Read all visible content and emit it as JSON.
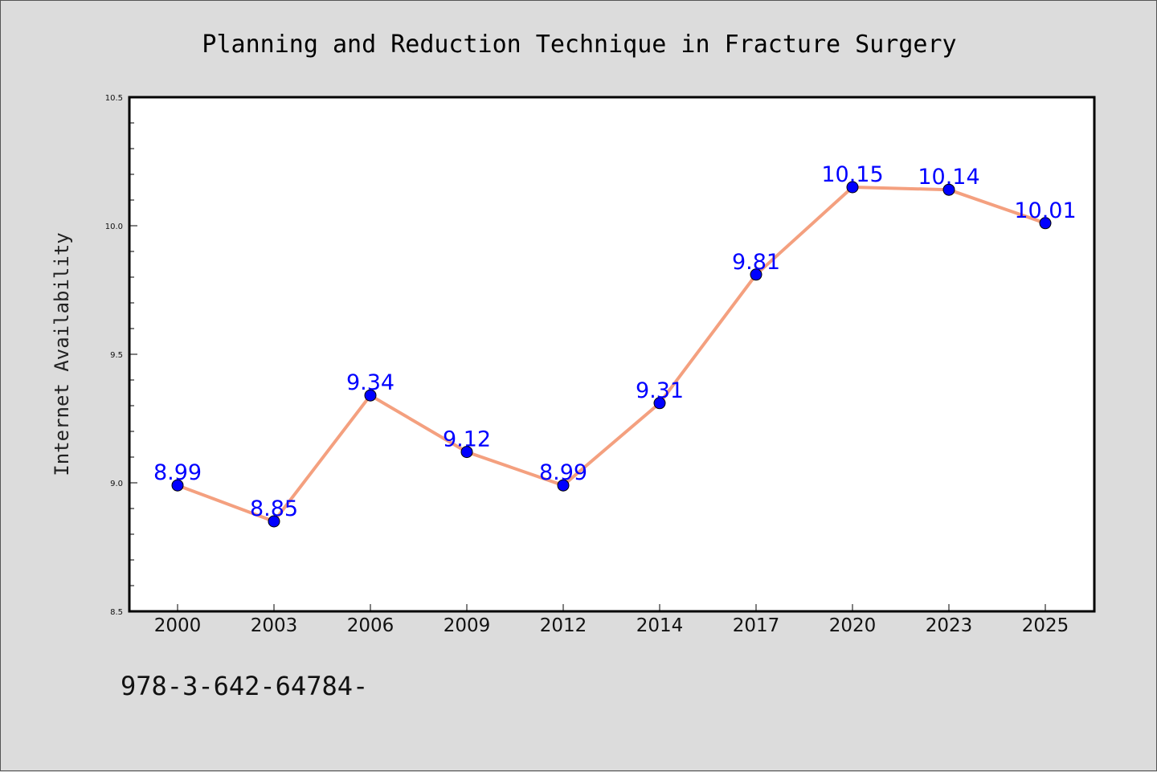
{
  "chart_data": {
    "type": "line",
    "title": "Planning and Reduction Technique in Fracture Surgery",
    "xlabel": "",
    "ylabel": "Internet Availability",
    "categories": [
      "2000",
      "2003",
      "2006",
      "2009",
      "2012",
      "2014",
      "2017",
      "2020",
      "2023",
      "2025"
    ],
    "series": [
      {
        "values": [
          8.99,
          8.85,
          9.34,
          9.12,
          8.99,
          9.31,
          9.81,
          10.15,
          10.14,
          10.01
        ],
        "line_color": "#f4a07f",
        "marker_color": "#0000ff",
        "label_color": "#0000ff"
      }
    ],
    "data_labels": [
      "8.99",
      "8.85",
      "9.34",
      "9.12",
      "8.99",
      "9.31",
      "9.81",
      "10.15",
      "10.14",
      "10.01"
    ],
    "ylim": [
      8.5,
      10.5
    ],
    "y_ticks": [
      "8.5",
      "9.0",
      "9.5",
      "10.0",
      "10.5"
    ],
    "grid": false,
    "legend": "none"
  },
  "footer": {
    "text": "978-3-642-64784-"
  },
  "colors": {
    "background": "#dcdcdc",
    "plot_background": "#ffffff",
    "axis": "#000000"
  }
}
